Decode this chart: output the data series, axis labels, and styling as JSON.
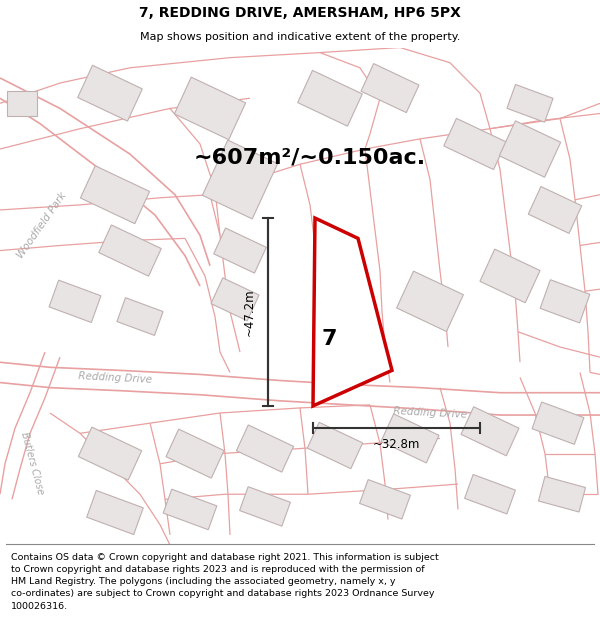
{
  "title_line1": "7, REDDING DRIVE, AMERSHAM, HP6 5PX",
  "title_line2": "Map shows position and indicative extent of the property.",
  "area_text": "~607m²/~0.150ac.",
  "number_label": "7",
  "dim_vertical": "~47.2m",
  "dim_horizontal": "~32.8m",
  "footer_text_lines": [
    "Contains OS data © Crown copyright and database right 2021. This information is subject",
    "to Crown copyright and database rights 2023 and is reproduced with the permission of",
    "HM Land Registry. The polygons (including the associated geometry, namely x, y",
    "co-ordinates) are subject to Crown copyright and database rights 2023 Ordnance Survey",
    "100026316."
  ],
  "bg_color": "#f7f4f4",
  "road_line_color": "#e8a0a0",
  "road_line_color2": "#d08080",
  "building_fill": "#e8e4e4",
  "building_edge": "#c8b8b8",
  "plot_edge": "#cc0000",
  "street_label1": "Woodfield Park",
  "street_label2": "Redding Drive",
  "street_label3": "Redding Drive",
  "street_label4": "Butlers Close"
}
